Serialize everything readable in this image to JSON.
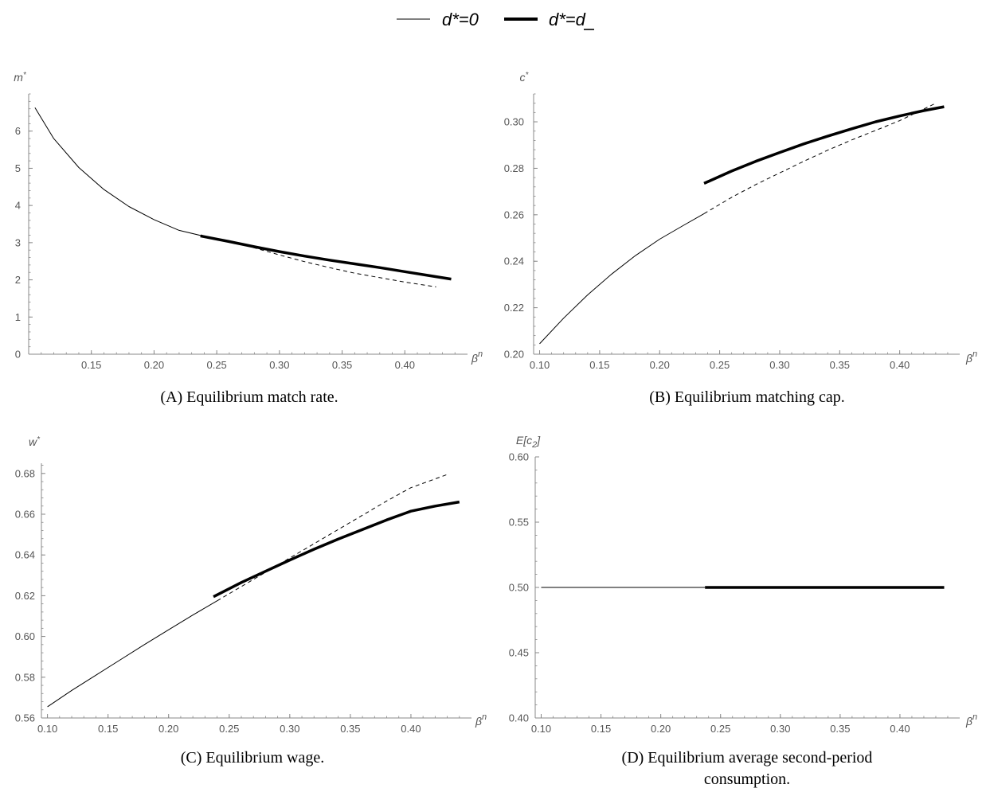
{
  "legend": {
    "items": [
      {
        "label": "d*=0",
        "style": "thin"
      },
      {
        "label": "d*=d",
        "style": "thick",
        "underline_d": true
      }
    ]
  },
  "styles": {
    "line_color": "#000000",
    "axis_color": "#888888",
    "tick_text_color": "#555555"
  },
  "chart_data": [
    {
      "id": "A",
      "type": "line",
      "caption": "(A) Equilibrium match rate.",
      "xlabel": "βn",
      "ylabel": "m*",
      "xlim": [
        0.1,
        0.45
      ],
      "ylim": [
        0,
        7
      ],
      "x_ticks": [
        0.15,
        0.2,
        0.25,
        0.3,
        0.35,
        0.4
      ],
      "x_tick_labels": [
        "0.15",
        "0.20",
        "0.25",
        "0.30",
        "0.35",
        "0.40"
      ],
      "y_ticks": [
        0,
        1,
        2,
        3,
        4,
        5,
        6
      ],
      "y_tick_labels": [
        "0",
        "1",
        "2",
        "3",
        "4",
        "5",
        "6"
      ],
      "series": [
        {
          "style": "thin",
          "x": [
            0.105,
            0.12,
            0.14,
            0.16,
            0.18,
            0.2,
            0.22,
            0.24
          ],
          "y": [
            6.63,
            5.8,
            5.02,
            4.43,
            3.97,
            3.62,
            3.33,
            3.17
          ]
        },
        {
          "style": "dashed",
          "x": [
            0.24,
            0.26,
            0.28,
            0.3,
            0.32,
            0.34,
            0.36,
            0.38,
            0.4,
            0.425
          ],
          "y": [
            3.17,
            3.05,
            2.86,
            2.67,
            2.49,
            2.33,
            2.18,
            2.06,
            1.94,
            1.81
          ]
        },
        {
          "style": "thick",
          "x": [
            0.237,
            0.26,
            0.28,
            0.3,
            0.32,
            0.34,
            0.36,
            0.38,
            0.4,
            0.42,
            0.437
          ],
          "y": [
            3.18,
            3.03,
            2.89,
            2.76,
            2.64,
            2.53,
            2.43,
            2.33,
            2.22,
            2.11,
            2.02
          ]
        }
      ]
    },
    {
      "id": "B",
      "type": "line",
      "caption": "(B) Equilibrium matching cap.",
      "xlabel": "βn",
      "ylabel": "c*",
      "xlim": [
        0.095,
        0.45
      ],
      "ylim": [
        0.2,
        0.312
      ],
      "x_ticks": [
        0.1,
        0.15,
        0.2,
        0.25,
        0.3,
        0.35,
        0.4
      ],
      "x_tick_labels": [
        "0.10",
        "0.15",
        "0.20",
        "0.25",
        "0.30",
        "0.35",
        "0.40"
      ],
      "y_ticks": [
        0.2,
        0.22,
        0.24,
        0.26,
        0.28,
        0.3
      ],
      "y_tick_labels": [
        "0.20",
        "0.22",
        "0.24",
        "0.26",
        "0.28",
        "0.30"
      ],
      "series": [
        {
          "style": "thin",
          "x": [
            0.1,
            0.12,
            0.14,
            0.16,
            0.18,
            0.2,
            0.22,
            0.237
          ],
          "y": [
            0.2045,
            0.2155,
            0.2255,
            0.2345,
            0.2425,
            0.2495,
            0.2555,
            0.2605
          ]
        },
        {
          "style": "dashed",
          "x": [
            0.237,
            0.26,
            0.28,
            0.3,
            0.32,
            0.34,
            0.36,
            0.38,
            0.4,
            0.43
          ],
          "y": [
            0.2605,
            0.2675,
            0.273,
            0.278,
            0.283,
            0.2878,
            0.2922,
            0.2963,
            0.3005,
            0.308
          ]
        },
        {
          "style": "thick",
          "x": [
            0.237,
            0.26,
            0.28,
            0.3,
            0.32,
            0.34,
            0.36,
            0.38,
            0.4,
            0.42,
            0.437
          ],
          "y": [
            0.2735,
            0.2788,
            0.283,
            0.2868,
            0.2905,
            0.2938,
            0.297,
            0.3,
            0.3025,
            0.3048,
            0.3065
          ]
        }
      ]
    },
    {
      "id": "C",
      "type": "line",
      "caption": "(C) Equilibrium wage.",
      "xlabel": "βn",
      "ylabel": "w*",
      "xlim": [
        0.095,
        0.45
      ],
      "ylim": [
        0.56,
        0.685
      ],
      "x_ticks": [
        0.1,
        0.15,
        0.2,
        0.25,
        0.3,
        0.35,
        0.4
      ],
      "x_tick_labels": [
        "0.10",
        "0.15",
        "0.20",
        "0.25",
        "0.30",
        "0.35",
        "0.40"
      ],
      "y_ticks": [
        0.56,
        0.58,
        0.6,
        0.62,
        0.64,
        0.66,
        0.68
      ],
      "y_tick_labels": [
        "0.56",
        "0.58",
        "0.60",
        "0.62",
        "0.64",
        "0.66",
        "0.68"
      ],
      "series": [
        {
          "style": "thin",
          "x": [
            0.1,
            0.12,
            0.14,
            0.16,
            0.18,
            0.2,
            0.22,
            0.24
          ],
          "y": [
            0.5655,
            0.5735,
            0.581,
            0.5885,
            0.596,
            0.6033,
            0.6105,
            0.6175
          ]
        },
        {
          "style": "dashed",
          "x": [
            0.24,
            0.26,
            0.28,
            0.3,
            0.32,
            0.34,
            0.36,
            0.38,
            0.4,
            0.43
          ],
          "y": [
            0.6175,
            0.6245,
            0.6315,
            0.6385,
            0.6455,
            0.6525,
            0.6595,
            0.6665,
            0.673,
            0.6795
          ]
        },
        {
          "style": "thick",
          "x": [
            0.237,
            0.26,
            0.28,
            0.3,
            0.32,
            0.34,
            0.36,
            0.38,
            0.4,
            0.42,
            0.44
          ],
          "y": [
            0.6195,
            0.6265,
            0.632,
            0.6375,
            0.6428,
            0.6478,
            0.6525,
            0.6572,
            0.6615,
            0.664,
            0.666
          ]
        }
      ]
    },
    {
      "id": "D",
      "type": "line",
      "caption": "(D) Equilibrium average second-period consumption.",
      "caption_lines": [
        "(D) Equilibrium average second-period",
        "consumption."
      ],
      "xlabel": "βn",
      "ylabel": "E[c2]",
      "xlim": [
        0.095,
        0.45
      ],
      "ylim": [
        0.4,
        0.6
      ],
      "x_ticks": [
        0.1,
        0.15,
        0.2,
        0.25,
        0.3,
        0.35,
        0.4
      ],
      "x_tick_labels": [
        "0.10",
        "0.15",
        "0.20",
        "0.25",
        "0.30",
        "0.35",
        "0.40"
      ],
      "y_ticks": [
        0.4,
        0.45,
        0.5,
        0.55,
        0.6
      ],
      "y_tick_labels": [
        "0.40",
        "0.45",
        "0.50",
        "0.55",
        "0.60"
      ],
      "series": [
        {
          "style": "thin",
          "x": [
            0.1,
            0.237
          ],
          "y": [
            0.5,
            0.5
          ]
        },
        {
          "style": "thick",
          "x": [
            0.237,
            0.437
          ],
          "y": [
            0.5,
            0.5
          ]
        }
      ]
    }
  ]
}
